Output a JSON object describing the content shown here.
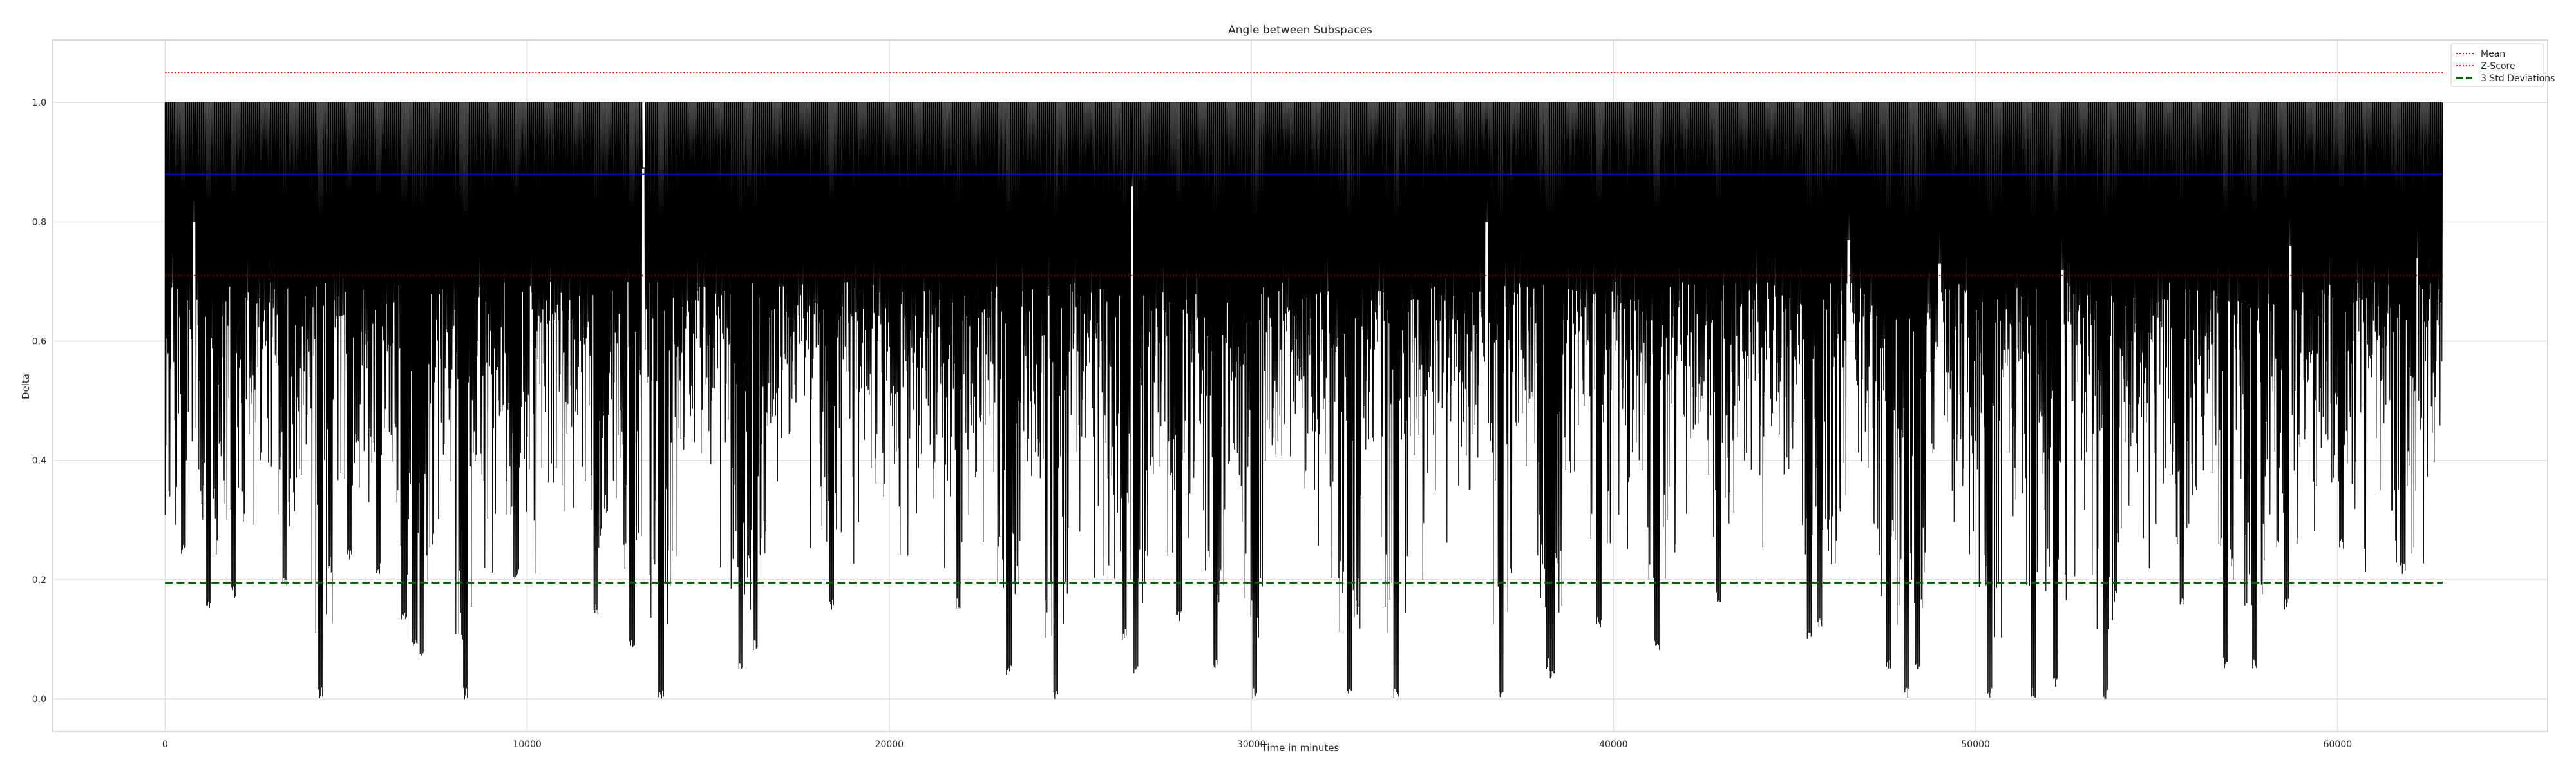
{
  "chart_data": {
    "type": "line",
    "title": "Angle between Subspaces",
    "xlabel": "Time in minutes",
    "ylabel": "Delta",
    "xlim": [
      -3100,
      65800
    ],
    "ylim": [
      -0.055,
      1.105
    ],
    "x_ticks": [
      0,
      10000,
      20000,
      30000,
      40000,
      50000,
      60000
    ],
    "y_ticks": [
      0.0,
      0.2,
      0.4,
      0.6,
      0.8,
      1.0
    ],
    "y_tick_labels": [
      "0.0",
      "0.2",
      "0.4",
      "0.6",
      "0.8",
      "1.0"
    ],
    "grid": true,
    "legend_position": "top-right",
    "series": [
      {
        "name": "",
        "kind": "signal",
        "color": "#000000",
        "x_start": 0,
        "x_end": 62900,
        "upper_value": 1.0,
        "typical_lower_range": [
          0.35,
          0.7
        ],
        "dips": [
          {
            "x": 500,
            "y": 0.24
          },
          {
            "x": 1200,
            "y": 0.15
          },
          {
            "x": 1900,
            "y": 0.17
          },
          {
            "x": 3300,
            "y": 0.19
          },
          {
            "x": 4300,
            "y": 0.0
          },
          {
            "x": 5100,
            "y": 0.23
          },
          {
            "x": 5900,
            "y": 0.21
          },
          {
            "x": 6600,
            "y": 0.13
          },
          {
            "x": 6900,
            "y": 0.08
          },
          {
            "x": 7100,
            "y": 0.07
          },
          {
            "x": 8300,
            "y": 0.0
          },
          {
            "x": 9700,
            "y": 0.2
          },
          {
            "x": 11900,
            "y": 0.14
          },
          {
            "x": 12900,
            "y": 0.08
          },
          {
            "x": 13700,
            "y": 0.0
          },
          {
            "x": 15900,
            "y": 0.05
          },
          {
            "x": 16300,
            "y": 0.08
          },
          {
            "x": 18400,
            "y": 0.15
          },
          {
            "x": 21900,
            "y": 0.15
          },
          {
            "x": 23300,
            "y": 0.04
          },
          {
            "x": 24600,
            "y": 0.0
          },
          {
            "x": 26500,
            "y": 0.1
          },
          {
            "x": 26800,
            "y": 0.04
          },
          {
            "x": 28000,
            "y": 0.13
          },
          {
            "x": 29000,
            "y": 0.05
          },
          {
            "x": 30100,
            "y": 0.0
          },
          {
            "x": 32700,
            "y": 0.0
          },
          {
            "x": 34000,
            "y": 0.0
          },
          {
            "x": 36900,
            "y": 0.0
          },
          {
            "x": 38200,
            "y": 0.05
          },
          {
            "x": 38300,
            "y": 0.03
          },
          {
            "x": 39600,
            "y": 0.12
          },
          {
            "x": 41200,
            "y": 0.08
          },
          {
            "x": 42900,
            "y": 0.16
          },
          {
            "x": 45400,
            "y": 0.1
          },
          {
            "x": 45700,
            "y": 0.12
          },
          {
            "x": 47600,
            "y": 0.05
          },
          {
            "x": 48100,
            "y": 0.0
          },
          {
            "x": 48400,
            "y": 0.05
          },
          {
            "x": 50400,
            "y": 0.0
          },
          {
            "x": 51600,
            "y": 0.0
          },
          {
            "x": 52200,
            "y": 0.02
          },
          {
            "x": 53600,
            "y": 0.0
          },
          {
            "x": 55700,
            "y": 0.15
          },
          {
            "x": 56900,
            "y": 0.05
          },
          {
            "x": 57700,
            "y": 0.05
          },
          {
            "x": 58600,
            "y": 0.15
          },
          {
            "x": 60100,
            "y": 0.25
          },
          {
            "x": 61800,
            "y": 0.21
          }
        ],
        "peaks": [
          {
            "x": 800,
            "y": 0.8
          },
          {
            "x": 26700,
            "y": 0.86
          },
          {
            "x": 36500,
            "y": 0.8
          },
          {
            "x": 46500,
            "y": 0.77
          },
          {
            "x": 49000,
            "y": 0.73
          },
          {
            "x": 52400,
            "y": 0.72
          },
          {
            "x": 58700,
            "y": 0.76
          },
          {
            "x": 62200,
            "y": 0.74
          }
        ],
        "spike": {
          "x": 13200,
          "y_low": 0.89
        }
      },
      {
        "name": "",
        "kind": "hline",
        "color": "#0000ff",
        "y": 0.88,
        "x_range": [
          0,
          62900
        ]
      },
      {
        "name": "Mean",
        "kind": "hline",
        "color": "#8b0000",
        "dash": "dotted",
        "y": 0.71,
        "x_range": [
          0,
          62900
        ]
      },
      {
        "name": "Z-Score",
        "kind": "hline",
        "color": "#ff0000",
        "dash": "dotted",
        "y": 1.05,
        "x_range": [
          0,
          62900
        ]
      },
      {
        "name": "3 Std Deviations",
        "kind": "hline",
        "color": "#006400",
        "dash": "dashed",
        "y": 0.195,
        "x_range": [
          0,
          62900
        ]
      }
    ],
    "legend": [
      {
        "label": "Mean",
        "color": "#8b0000",
        "style": "dotted"
      },
      {
        "label": "Z-Score",
        "color": "#ff0000",
        "style": "dotted"
      },
      {
        "label": "3 Std Deviations",
        "color": "#006400",
        "style": "dashed"
      }
    ]
  }
}
